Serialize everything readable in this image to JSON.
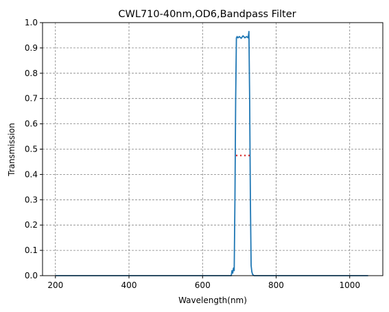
{
  "chart_data": {
    "type": "line",
    "title": "CWL710-40nm,OD6,Bandpass Filter",
    "xlabel": "Wavelength(nm)",
    "ylabel": "Transmission",
    "xlim": [
      165,
      1090
    ],
    "ylim": [
      0,
      1.0
    ],
    "xticks": [
      200,
      400,
      600,
      800,
      1000
    ],
    "yticks": [
      0.0,
      0.1,
      0.2,
      0.3,
      0.4,
      0.5,
      0.6,
      0.7,
      0.8,
      0.9,
      1.0
    ],
    "grid": true,
    "series": [
      {
        "color": "#1f77b4",
        "style": "solid",
        "x": [
          200,
          400,
          600,
          670,
          678,
          680,
          682,
          684,
          686,
          688,
          690,
          692,
          694,
          696,
          700,
          705,
          710,
          715,
          720,
          724,
          726,
          728,
          730,
          732,
          734,
          736,
          740,
          750,
          800,
          900,
          1050
        ],
        "y": [
          0.0,
          0.0,
          0.0,
          0.0,
          0.0,
          0.02,
          0.01,
          0.03,
          0.02,
          0.3,
          0.7,
          0.94,
          0.945,
          0.94,
          0.945,
          0.938,
          0.948,
          0.94,
          0.945,
          0.94,
          0.965,
          0.7,
          0.3,
          0.04,
          0.015,
          0.005,
          0.0,
          0.0,
          0.0,
          0.0,
          0.0
        ]
      },
      {
        "color": "#d62728",
        "style": "dotted",
        "x": [
          691,
          729
        ],
        "y": [
          0.475,
          0.475
        ]
      }
    ]
  }
}
